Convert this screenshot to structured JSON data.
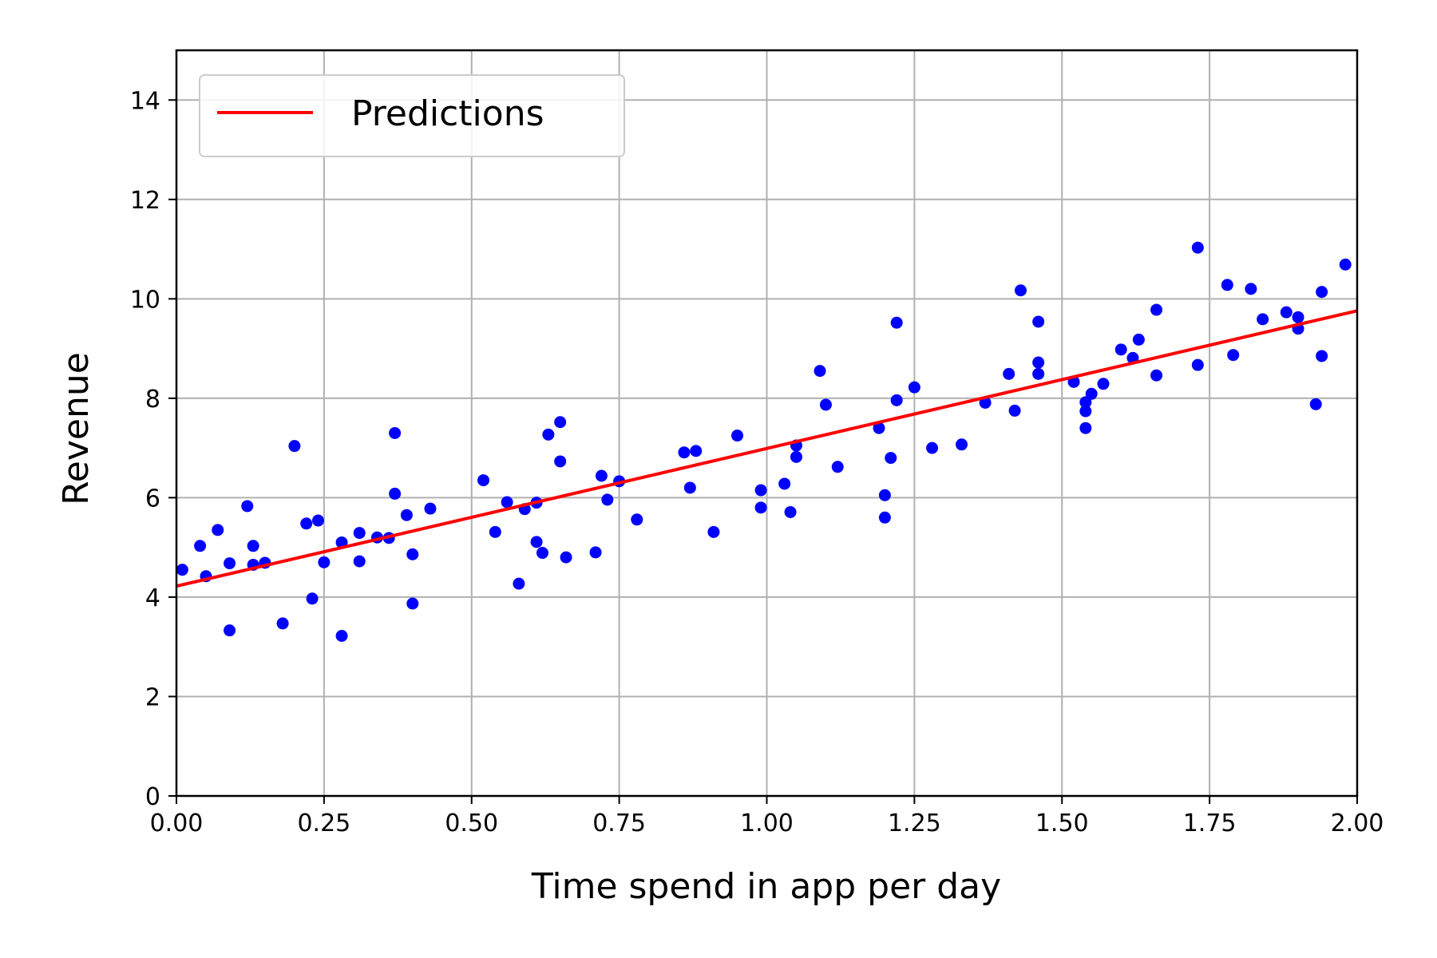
{
  "chart_data": {
    "type": "scatter",
    "xlabel": "Time spend in app per day",
    "ylabel": "Revenue",
    "xlim": [
      0,
      2
    ],
    "ylim": [
      0,
      15
    ],
    "x_ticks": [
      0,
      0.25,
      0.5,
      0.75,
      1.0,
      1.25,
      1.5,
      1.75,
      2.0
    ],
    "x_tick_labels": [
      "0.00",
      "0.25",
      "0.50",
      "0.75",
      "1.00",
      "1.25",
      "1.50",
      "1.75",
      "2.00"
    ],
    "y_ticks": [
      0,
      2,
      4,
      6,
      8,
      10,
      12,
      14
    ],
    "y_tick_labels": [
      "0",
      "2",
      "4",
      "6",
      "8",
      "10",
      "12",
      "14"
    ],
    "grid": true,
    "legend_position": "top-left",
    "legend": {
      "label": "Predictions"
    },
    "line": {
      "name": "Predictions",
      "color": "#ff0000",
      "x": [
        0,
        2
      ],
      "y": [
        4.22,
        9.76
      ]
    },
    "scatter": {
      "color": "#0000ff",
      "points": [
        [
          0.01,
          4.55
        ],
        [
          0.04,
          5.03
        ],
        [
          0.05,
          4.42
        ],
        [
          0.07,
          5.35
        ],
        [
          0.09,
          3.33
        ],
        [
          0.09,
          4.68
        ],
        [
          0.12,
          5.83
        ],
        [
          0.13,
          5.03
        ],
        [
          0.13,
          4.65
        ],
        [
          0.15,
          4.69
        ],
        [
          0.18,
          3.47
        ],
        [
          0.2,
          7.04
        ],
        [
          0.22,
          5.48
        ],
        [
          0.23,
          3.97
        ],
        [
          0.24,
          5.54
        ],
        [
          0.25,
          4.7
        ],
        [
          0.28,
          5.1
        ],
        [
          0.28,
          3.22
        ],
        [
          0.31,
          5.29
        ],
        [
          0.31,
          4.72
        ],
        [
          0.34,
          5.2
        ],
        [
          0.36,
          5.19
        ],
        [
          0.37,
          6.08
        ],
        [
          0.37,
          7.3
        ],
        [
          0.39,
          5.65
        ],
        [
          0.4,
          3.87
        ],
        [
          0.4,
          4.86
        ],
        [
          0.43,
          5.78
        ],
        [
          0.52,
          6.35
        ],
        [
          0.54,
          5.31
        ],
        [
          0.56,
          5.91
        ],
        [
          0.58,
          4.27
        ],
        [
          0.59,
          5.77
        ],
        [
          0.61,
          5.11
        ],
        [
          0.61,
          5.9
        ],
        [
          0.62,
          4.89
        ],
        [
          0.63,
          7.27
        ],
        [
          0.65,
          7.52
        ],
        [
          0.65,
          6.73
        ],
        [
          0.66,
          4.8
        ],
        [
          0.71,
          4.9
        ],
        [
          0.72,
          6.44
        ],
        [
          0.73,
          5.96
        ],
        [
          0.75,
          6.33
        ],
        [
          0.78,
          5.56
        ],
        [
          0.86,
          6.91
        ],
        [
          0.87,
          6.2
        ],
        [
          0.88,
          6.94
        ],
        [
          0.91,
          5.31
        ],
        [
          0.95,
          7.25
        ],
        [
          0.99,
          6.15
        ],
        [
          0.99,
          5.8
        ],
        [
          1.03,
          6.28
        ],
        [
          1.04,
          5.71
        ],
        [
          1.05,
          7.05
        ],
        [
          1.05,
          6.82
        ],
        [
          1.09,
          8.55
        ],
        [
          1.1,
          7.87
        ],
        [
          1.12,
          6.62
        ],
        [
          1.19,
          7.4
        ],
        [
          1.2,
          6.05
        ],
        [
          1.2,
          5.6
        ],
        [
          1.21,
          6.8
        ],
        [
          1.22,
          9.52
        ],
        [
          1.22,
          7.96
        ],
        [
          1.25,
          8.22
        ],
        [
          1.28,
          7.0
        ],
        [
          1.33,
          7.07
        ],
        [
          1.37,
          7.91
        ],
        [
          1.41,
          8.49
        ],
        [
          1.42,
          7.75
        ],
        [
          1.43,
          10.17
        ],
        [
          1.46,
          9.54
        ],
        [
          1.46,
          8.72
        ],
        [
          1.46,
          8.49
        ],
        [
          1.52,
          8.33
        ],
        [
          1.54,
          7.74
        ],
        [
          1.54,
          7.92
        ],
        [
          1.54,
          7.4
        ],
        [
          1.55,
          8.09
        ],
        [
          1.57,
          8.29
        ],
        [
          1.6,
          8.98
        ],
        [
          1.62,
          8.81
        ],
        [
          1.63,
          9.18
        ],
        [
          1.66,
          9.78
        ],
        [
          1.66,
          8.46
        ],
        [
          1.73,
          11.03
        ],
        [
          1.73,
          8.67
        ],
        [
          1.78,
          10.28
        ],
        [
          1.79,
          8.87
        ],
        [
          1.82,
          10.2
        ],
        [
          1.84,
          9.59
        ],
        [
          1.88,
          9.73
        ],
        [
          1.9,
          9.63
        ],
        [
          1.9,
          9.4
        ],
        [
          1.93,
          7.88
        ],
        [
          1.94,
          10.14
        ],
        [
          1.94,
          8.85
        ],
        [
          1.98,
          10.69
        ]
      ]
    }
  }
}
